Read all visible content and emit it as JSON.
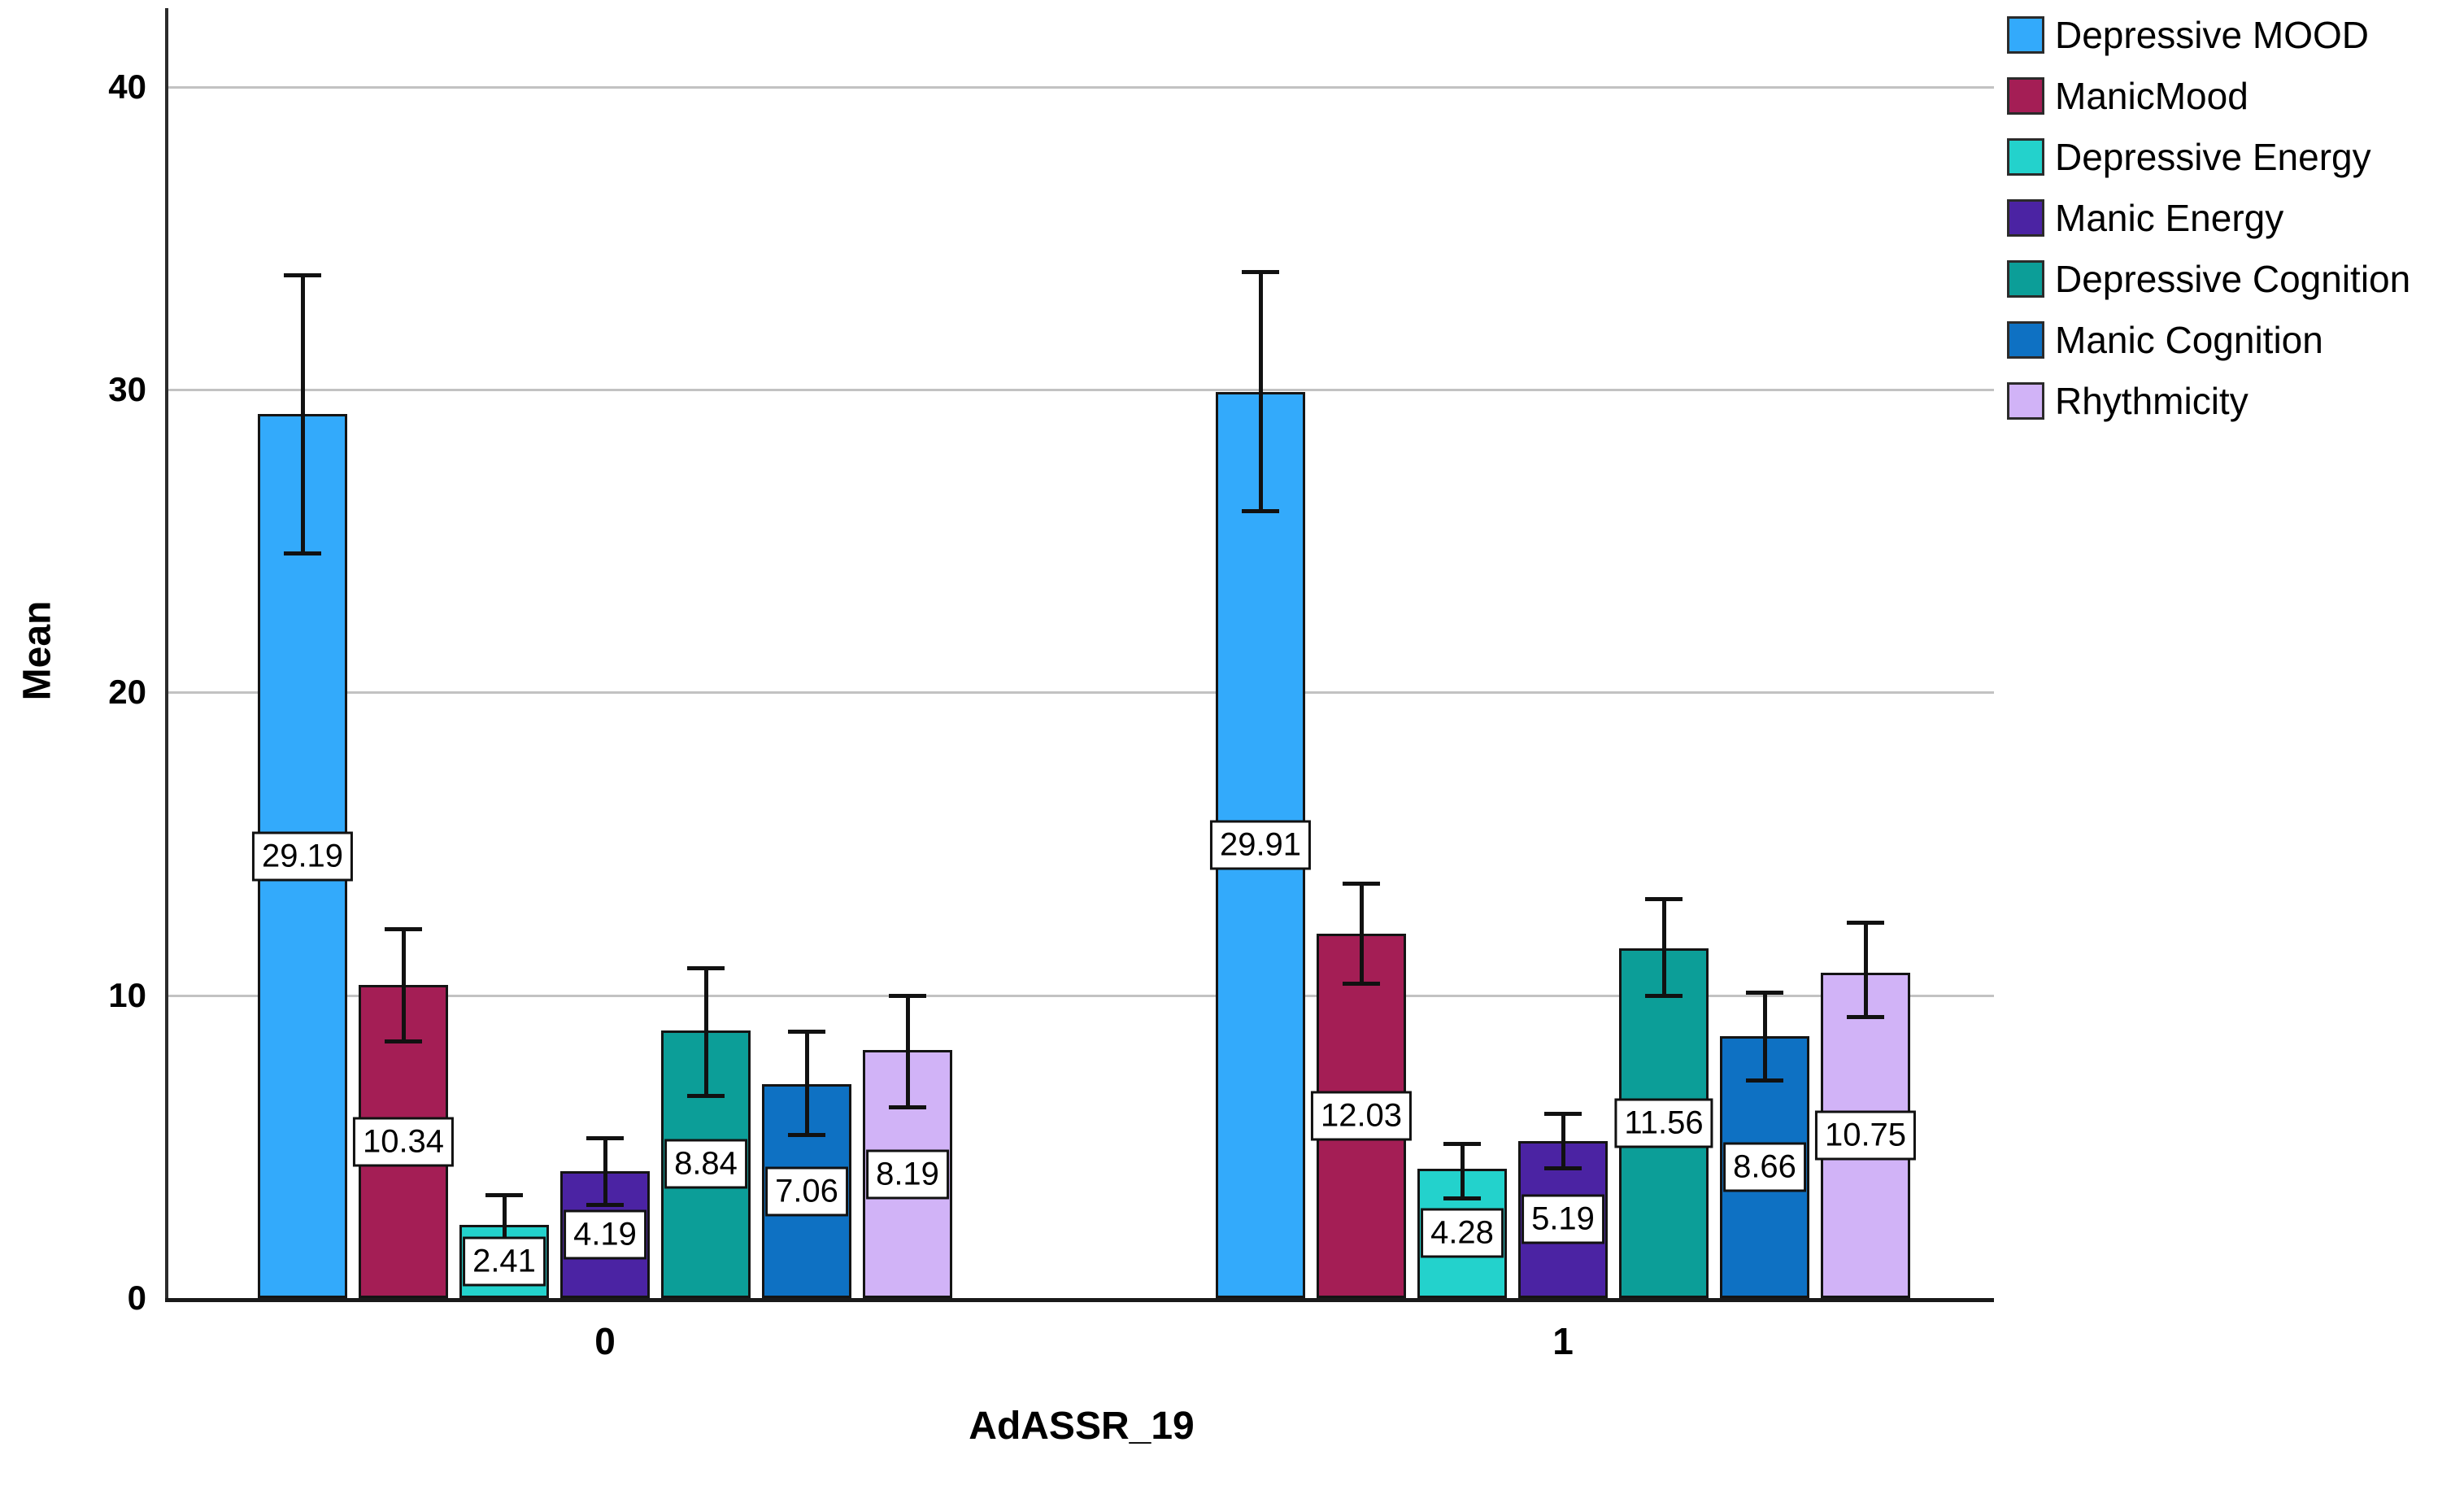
{
  "chart_data": {
    "type": "bar",
    "title": "",
    "xlabel": "AdASSR_19",
    "ylabel": "Mean",
    "categories": [
      "0",
      "1"
    ],
    "yticks": [
      0,
      10,
      20,
      30,
      40
    ],
    "ylim": [
      0,
      42.6
    ],
    "grid": true,
    "legend_position": "top-right",
    "error_bars": true,
    "series": [
      {
        "name": "Depressive MOOD",
        "color": "#33AAFB",
        "values": [
          29.19,
          29.91
        ],
        "error_low": [
          24.6,
          26.0
        ],
        "error_high": [
          33.8,
          33.9
        ]
      },
      {
        "name": "ManicMood",
        "color": "#A41E55",
        "values": [
          10.34,
          12.03
        ],
        "error_low": [
          8.5,
          10.4
        ],
        "error_high": [
          12.2,
          13.7
        ]
      },
      {
        "name": "Depressive Energy",
        "color": "#23D2CC",
        "values": [
          2.41,
          4.28
        ],
        "error_low": [
          1.5,
          3.3
        ],
        "error_high": [
          3.4,
          5.1
        ]
      },
      {
        "name": "Manic Energy",
        "color": "#4B23A3",
        "values": [
          4.19,
          5.19
        ],
        "error_low": [
          3.1,
          4.3
        ],
        "error_high": [
          5.3,
          6.1
        ]
      },
      {
        "name": "Depressive Cognition",
        "color": "#0C9E98",
        "values": [
          8.84,
          11.56
        ],
        "error_low": [
          6.7,
          10.0
        ],
        "error_high": [
          10.9,
          13.2
        ]
      },
      {
        "name": "Manic Cognition",
        "color": "#0E71C3",
        "values": [
          7.06,
          8.66
        ],
        "error_low": [
          5.4,
          7.2
        ],
        "error_high": [
          8.8,
          10.1
        ]
      },
      {
        "name": "Rhythmicity",
        "color": "#D1B3F7",
        "values": [
          8.19,
          10.75
        ],
        "error_low": [
          6.3,
          9.3
        ],
        "error_high": [
          10.0,
          12.4
        ]
      }
    ],
    "value_label_format": "2dp"
  },
  "colors": {
    "background": "#FFFFFF",
    "gridline": "#C2C2C2",
    "axis": "#2B2B2B",
    "error_bar": "#111111",
    "value_label_bg": "#FFFFFF",
    "value_label_border": "#111111"
  }
}
